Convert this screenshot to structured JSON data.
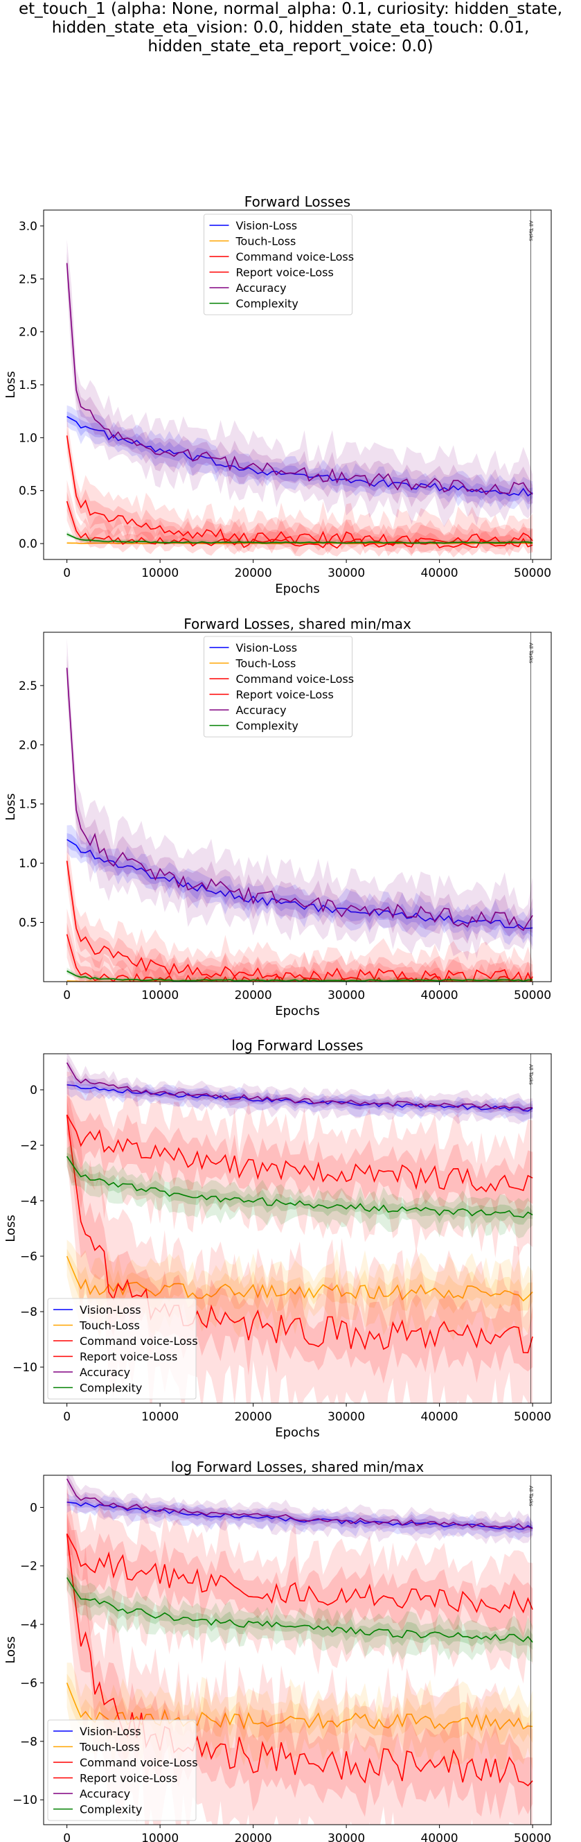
{
  "suptitle": {
    "line1": "et_touch_1 (alpha: None, normal_alpha: 0.1, curiosity: hidden_state,",
    "line2": "hidden_state_eta_vision: 0.0, hidden_state_eta_touch: 0.01,",
    "line3": "hidden_state_eta_report_voice: 0.0)"
  },
  "colors": {
    "Vision-Loss": "#0000ff",
    "Touch-Loss": "#ffa500",
    "Command voice-Loss": "#ff0000",
    "Report voice-Loss": "#ff0000",
    "Accuracy": "#800080",
    "Complexity": "#008000"
  },
  "chart_data": [
    {
      "type": "line",
      "title": "Forward Losses",
      "xlabel": "Epochs",
      "ylabel": "Loss",
      "xlim": [
        -2500,
        52000
      ],
      "ylim": [
        -0.15,
        3.15
      ],
      "xticks": [
        0,
        10000,
        20000,
        30000,
        40000,
        50000
      ],
      "yticks": [
        0.0,
        0.5,
        1.0,
        1.5,
        2.0,
        2.5,
        3.0
      ],
      "ytick_labels": [
        "0.0",
        "0.5",
        "1.0",
        "1.5",
        "2.0",
        "2.5",
        "3.0"
      ],
      "legend_position": "upper center",
      "vline_label": "All Tasks",
      "series": [
        {
          "name": "Vision-Loss",
          "x": [
            0,
            2500,
            5000,
            10000,
            15000,
            20000,
            25000,
            30000,
            35000,
            40000,
            45000,
            50000
          ],
          "y": [
            1.2,
            1.08,
            1.0,
            0.88,
            0.78,
            0.7,
            0.64,
            0.6,
            0.56,
            0.53,
            0.5,
            0.48
          ]
        },
        {
          "name": "Touch-Loss",
          "x": [
            0,
            2500,
            5000,
            10000,
            20000,
            30000,
            40000,
            50000
          ],
          "y": [
            0.005,
            0.003,
            0.002,
            0.002,
            0.002,
            0.002,
            0.002,
            0.002
          ]
        },
        {
          "name": "Command voice-Loss",
          "x": [
            0,
            1000,
            2500,
            5000,
            10000,
            15000,
            20000,
            30000,
            40000,
            50000
          ],
          "y": [
            1.02,
            0.45,
            0.3,
            0.22,
            0.12,
            0.08,
            0.06,
            0.05,
            0.04,
            0.04
          ]
        },
        {
          "name": "Report voice-Loss",
          "x": [
            0,
            1000,
            2500,
            5000,
            10000,
            20000,
            30000,
            40000,
            50000
          ],
          "y": [
            0.4,
            0.12,
            0.06,
            0.03,
            0.01,
            0.005,
            0.003,
            0.002,
            0.002
          ]
        },
        {
          "name": "Accuracy",
          "x": [
            0,
            1000,
            2500,
            5000,
            10000,
            15000,
            20000,
            25000,
            30000,
            35000,
            40000,
            45000,
            50000
          ],
          "y": [
            2.65,
            1.45,
            1.2,
            1.05,
            0.9,
            0.8,
            0.72,
            0.66,
            0.62,
            0.58,
            0.55,
            0.52,
            0.5
          ]
        },
        {
          "name": "Complexity",
          "x": [
            0,
            1000,
            2500,
            5000,
            10000,
            20000,
            30000,
            40000,
            50000
          ],
          "y": [
            0.09,
            0.05,
            0.03,
            0.02,
            0.012,
            0.01,
            0.01,
            0.01,
            0.01
          ]
        }
      ]
    },
    {
      "type": "line",
      "title": "Forward Losses, shared min/max",
      "xlabel": "Epochs",
      "ylabel": "Loss",
      "xlim": [
        -2500,
        52000
      ],
      "ylim": [
        0.0,
        2.95
      ],
      "xticks": [
        0,
        10000,
        20000,
        30000,
        40000,
        50000
      ],
      "yticks": [
        0.5,
        1.0,
        1.5,
        2.0,
        2.5
      ],
      "ytick_labels": [
        "0.5",
        "1.0",
        "1.5",
        "2.0",
        "2.5"
      ],
      "legend_position": "upper center",
      "vline_label": "All Tasks",
      "series": [
        {
          "name": "Vision-Loss",
          "x": [
            0,
            2500,
            5000,
            10000,
            15000,
            20000,
            25000,
            30000,
            35000,
            40000,
            45000,
            50000
          ],
          "y": [
            1.2,
            1.08,
            1.0,
            0.88,
            0.78,
            0.7,
            0.64,
            0.6,
            0.56,
            0.53,
            0.5,
            0.48
          ]
        },
        {
          "name": "Touch-Loss",
          "x": [
            0,
            2500,
            5000,
            10000,
            20000,
            30000,
            40000,
            50000
          ],
          "y": [
            0.005,
            0.003,
            0.002,
            0.002,
            0.002,
            0.002,
            0.002,
            0.002
          ]
        },
        {
          "name": "Command voice-Loss",
          "x": [
            0,
            1000,
            2500,
            5000,
            10000,
            15000,
            20000,
            30000,
            40000,
            50000
          ],
          "y": [
            1.02,
            0.45,
            0.3,
            0.22,
            0.12,
            0.08,
            0.06,
            0.05,
            0.04,
            0.04
          ]
        },
        {
          "name": "Report voice-Loss",
          "x": [
            0,
            1000,
            2500,
            5000,
            10000,
            20000,
            30000,
            40000,
            50000
          ],
          "y": [
            0.4,
            0.12,
            0.06,
            0.03,
            0.01,
            0.005,
            0.003,
            0.002,
            0.002
          ]
        },
        {
          "name": "Accuracy",
          "x": [
            0,
            1000,
            2500,
            5000,
            10000,
            15000,
            20000,
            25000,
            30000,
            35000,
            40000,
            45000,
            50000
          ],
          "y": [
            2.65,
            1.45,
            1.2,
            1.05,
            0.9,
            0.8,
            0.72,
            0.66,
            0.62,
            0.58,
            0.55,
            0.52,
            0.5
          ]
        },
        {
          "name": "Complexity",
          "x": [
            0,
            1000,
            2500,
            5000,
            10000,
            20000,
            30000,
            40000,
            50000
          ],
          "y": [
            0.09,
            0.05,
            0.03,
            0.02,
            0.012,
            0.01,
            0.01,
            0.01,
            0.01
          ]
        }
      ]
    },
    {
      "type": "line",
      "title": "log Forward Losses",
      "xlabel": "Epochs",
      "ylabel": "Loss",
      "xlim": [
        -2500,
        52000
      ],
      "ylim": [
        -11.3,
        1.3
      ],
      "xticks": [
        0,
        10000,
        20000,
        30000,
        40000,
        50000
      ],
      "yticks": [
        0,
        -2,
        -4,
        -6,
        -8,
        -10
      ],
      "ytick_labels": [
        "0",
        "−2",
        "−4",
        "−6",
        "−8",
        "−10"
      ],
      "legend_position": "lower left",
      "vline_label": "All Tasks",
      "series": [
        {
          "name": "Vision-Loss",
          "x": [
            0,
            5000,
            10000,
            20000,
            30000,
            40000,
            50000
          ],
          "y": [
            0.18,
            0.0,
            -0.15,
            -0.35,
            -0.5,
            -0.6,
            -0.7
          ]
        },
        {
          "name": "Touch-Loss",
          "x": [
            0,
            1000,
            2500,
            5000,
            10000,
            20000,
            30000,
            40000,
            50000
          ],
          "y": [
            -6.0,
            -6.8,
            -7.1,
            -7.2,
            -7.2,
            -7.3,
            -7.3,
            -7.3,
            -7.4
          ]
        },
        {
          "name": "Command voice-Loss",
          "x": [
            0,
            1000,
            2500,
            5000,
            10000,
            15000,
            20000,
            30000,
            40000,
            50000
          ],
          "y": [
            -0.9,
            -1.5,
            -1.8,
            -2.0,
            -2.3,
            -2.6,
            -2.8,
            -3.0,
            -3.2,
            -3.3
          ]
        },
        {
          "name": "Report voice-Loss",
          "x": [
            0,
            1000,
            2500,
            5000,
            10000,
            15000,
            20000,
            30000,
            40000,
            50000
          ],
          "y": [
            -0.9,
            -3.5,
            -5.5,
            -7.0,
            -8.0,
            -8.3,
            -8.5,
            -8.8,
            -8.9,
            -9.0
          ]
        },
        {
          "name": "Accuracy",
          "x": [
            0,
            1000,
            2500,
            5000,
            10000,
            20000,
            30000,
            40000,
            50000
          ],
          "y": [
            0.98,
            0.4,
            0.25,
            0.1,
            -0.1,
            -0.3,
            -0.45,
            -0.55,
            -0.65
          ]
        },
        {
          "name": "Complexity",
          "x": [
            0,
            1000,
            2500,
            5000,
            10000,
            15000,
            20000,
            30000,
            40000,
            50000
          ],
          "y": [
            -2.4,
            -2.9,
            -3.2,
            -3.4,
            -3.7,
            -3.9,
            -4.0,
            -4.2,
            -4.4,
            -4.5
          ]
        }
      ]
    },
    {
      "type": "line",
      "title": "log Forward Losses, shared min/max",
      "xlabel": "Epochs",
      "ylabel": "Loss",
      "xlim": [
        -2500,
        52000
      ],
      "ylim": [
        -10.85,
        1.1
      ],
      "xticks": [
        0,
        10000,
        20000,
        30000,
        40000,
        50000
      ],
      "yticks": [
        0,
        -2,
        -4,
        -6,
        -8,
        -10
      ],
      "ytick_labels": [
        "0",
        "−2",
        "−4",
        "−6",
        "−8",
        "−10"
      ],
      "legend_position": "lower left",
      "vline_label": "All Tasks",
      "series": [
        {
          "name": "Vision-Loss",
          "x": [
            0,
            5000,
            10000,
            20000,
            30000,
            40000,
            50000
          ],
          "y": [
            0.18,
            0.0,
            -0.15,
            -0.35,
            -0.5,
            -0.6,
            -0.7
          ]
        },
        {
          "name": "Touch-Loss",
          "x": [
            0,
            1000,
            2500,
            5000,
            10000,
            20000,
            30000,
            40000,
            50000
          ],
          "y": [
            -6.0,
            -6.8,
            -7.1,
            -7.2,
            -7.2,
            -7.3,
            -7.3,
            -7.3,
            -7.4
          ]
        },
        {
          "name": "Command voice-Loss",
          "x": [
            0,
            1000,
            2500,
            5000,
            10000,
            15000,
            20000,
            30000,
            40000,
            50000
          ],
          "y": [
            -0.9,
            -1.5,
            -1.8,
            -2.0,
            -2.3,
            -2.6,
            -2.8,
            -3.0,
            -3.2,
            -3.3
          ]
        },
        {
          "name": "Report voice-Loss",
          "x": [
            0,
            1000,
            2500,
            5000,
            10000,
            15000,
            20000,
            30000,
            40000,
            50000
          ],
          "y": [
            -0.9,
            -3.5,
            -5.5,
            -7.0,
            -8.0,
            -8.3,
            -8.5,
            -8.8,
            -8.9,
            -9.0
          ]
        },
        {
          "name": "Accuracy",
          "x": [
            0,
            1000,
            2500,
            5000,
            10000,
            20000,
            30000,
            40000,
            50000
          ],
          "y": [
            0.98,
            0.4,
            0.25,
            0.1,
            -0.1,
            -0.3,
            -0.45,
            -0.55,
            -0.65
          ]
        },
        {
          "name": "Complexity",
          "x": [
            0,
            1000,
            2500,
            5000,
            10000,
            15000,
            20000,
            30000,
            40000,
            50000
          ],
          "y": [
            -2.4,
            -2.9,
            -3.2,
            -3.4,
            -3.7,
            -3.9,
            -4.0,
            -4.2,
            -4.4,
            -4.5
          ]
        }
      ]
    }
  ]
}
